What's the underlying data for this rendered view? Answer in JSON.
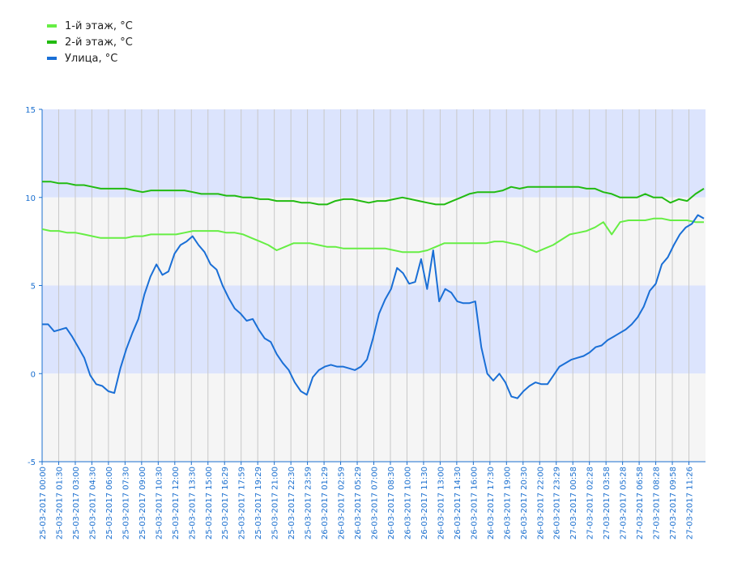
{
  "legend": [
    {
      "label": "1-й этаж, °С",
      "color": "#66ee44"
    },
    {
      "label": "2-й этаж, °С",
      "color": "#22bb11"
    },
    {
      "label": "Улица, °С",
      "color": "#1a6fd6"
    }
  ],
  "chart_data": {
    "type": "line",
    "ylim": [
      -5,
      15
    ],
    "yticks": [
      "15",
      "10",
      "5",
      "0",
      "-5"
    ],
    "x_tick_labels": [
      "25-03-2017 00:00",
      "25-03-2017 01:30",
      "25-03-2017 03:00",
      "25-03-2017 04:30",
      "25-03-2017 06:00",
      "25-03-2017 07:30",
      "25-03-2017 09:00",
      "25-03-2017 10:30",
      "25-03-2017 12:00",
      "25-03-2017 13:30",
      "25-03-2017 15:00",
      "25-03-2017 16:29",
      "25-03-2017 17:59",
      "25-03-2017 19:29",
      "25-03-2017 21:00",
      "25-03-2017 22:30",
      "25-03-2017 23:59",
      "26-03-2017 01:29",
      "26-03-2017 02:59",
      "26-03-2017 05:29",
      "26-03-2017 07:00",
      "26-03-2017 08:30",
      "26-03-2017 10:00",
      "26-03-2017 11:30",
      "26-03-2017 13:00",
      "26-03-2017 14:30",
      "26-03-2017 16:00",
      "26-03-2017 17:30",
      "26-03-2017 19:00",
      "26-03-2017 20:30",
      "26-03-2017 22:00",
      "26-03-2017 23:29",
      "27-03-2017 00:58",
      "27-03-2017 02:28",
      "27-03-2017 03:58",
      "27-03-2017 05:28",
      "27-03-2017 06:58",
      "27-03-2017 08:28",
      "27-03-2017 09:58",
      "27-03-2017 11:26"
    ],
    "bands": [
      {
        "from": 10,
        "to": 15,
        "color": "#dce4fd"
      },
      {
        "from": 5,
        "to": 10,
        "color": "#f5f5f5"
      },
      {
        "from": 0,
        "to": 5,
        "color": "#dce4fd"
      },
      {
        "from": -5,
        "to": 0,
        "color": "#f5f5f5"
      }
    ],
    "series": [
      {
        "name": "2-й этаж, °С",
        "color": "#22bb11",
        "values": [
          10.9,
          10.9,
          10.8,
          10.8,
          10.7,
          10.7,
          10.6,
          10.5,
          10.5,
          10.5,
          10.5,
          10.4,
          10.3,
          10.4,
          10.4,
          10.4,
          10.4,
          10.4,
          10.3,
          10.2,
          10.2,
          10.2,
          10.1,
          10.1,
          10.0,
          10.0,
          9.9,
          9.9,
          9.8,
          9.8,
          9.8,
          9.7,
          9.7,
          9.6,
          9.6,
          9.8,
          9.9,
          9.9,
          9.8,
          9.7,
          9.8,
          9.8,
          9.9,
          10.0,
          9.9,
          9.8,
          9.7,
          9.6,
          9.6,
          9.8,
          10.0,
          10.2,
          10.3,
          10.3,
          10.3,
          10.4,
          10.6,
          10.5,
          10.6,
          10.6,
          10.6,
          10.6,
          10.6,
          10.6,
          10.6,
          10.5,
          10.5,
          10.3,
          10.2,
          10.0,
          10.0,
          10.0,
          10.2,
          10.0,
          10.0,
          9.7,
          9.9,
          9.8,
          10.2,
          10.5
        ]
      },
      {
        "name": "1-й этаж, °С",
        "color": "#66ee44",
        "values": [
          8.2,
          8.1,
          8.1,
          8.0,
          8.0,
          7.9,
          7.8,
          7.7,
          7.7,
          7.7,
          7.7,
          7.8,
          7.8,
          7.9,
          7.9,
          7.9,
          7.9,
          8.0,
          8.1,
          8.1,
          8.1,
          8.1,
          8.0,
          8.0,
          7.9,
          7.7,
          7.5,
          7.3,
          7.0,
          7.2,
          7.4,
          7.4,
          7.4,
          7.3,
          7.2,
          7.2,
          7.1,
          7.1,
          7.1,
          7.1,
          7.1,
          7.1,
          7.0,
          6.9,
          6.9,
          6.9,
          7.0,
          7.2,
          7.4,
          7.4,
          7.4,
          7.4,
          7.4,
          7.4,
          7.5,
          7.5,
          7.4,
          7.3,
          7.1,
          6.9,
          7.1,
          7.3,
          7.6,
          7.9,
          8.0,
          8.1,
          8.3,
          8.6,
          7.9,
          8.6,
          8.7,
          8.7,
          8.7,
          8.8,
          8.8,
          8.7,
          8.7,
          8.7,
          8.6,
          8.6
        ]
      },
      {
        "name": "Улица, °С",
        "color": "#1a6fd6",
        "values": [
          2.8,
          2.8,
          2.4,
          2.5,
          2.6,
          2.1,
          1.5,
          0.9,
          -0.1,
          -0.6,
          -0.7,
          -1.0,
          -1.1,
          0.3,
          1.4,
          2.3,
          3.1,
          4.5,
          5.5,
          6.2,
          5.6,
          5.8,
          6.8,
          7.3,
          7.5,
          7.8,
          7.3,
          6.9,
          6.2,
          5.9,
          5.0,
          4.3,
          3.7,
          3.4,
          3.0,
          3.1,
          2.5,
          2.0,
          1.8,
          1.1,
          0.6,
          0.2,
          -0.5,
          -1.0,
          -1.2,
          -0.2,
          0.2,
          0.4,
          0.5,
          0.4,
          0.4,
          0.3,
          0.2,
          0.4,
          0.8,
          2.0,
          3.4,
          4.2,
          4.8,
          6.0,
          5.7,
          5.1,
          5.2,
          6.5,
          4.8,
          7.0,
          4.1,
          4.8,
          4.6,
          4.1,
          4.0,
          4.0,
          4.1,
          1.5,
          0.0,
          -0.4,
          0.0,
          -0.5,
          -1.3,
          -1.4,
          -1.0,
          -0.7,
          -0.5,
          -0.6,
          -0.6,
          -0.1,
          0.4,
          0.6,
          0.8,
          0.9,
          1.0,
          1.2,
          1.5,
          1.6,
          1.9,
          2.1,
          2.3,
          2.5,
          2.8,
          3.2,
          3.8,
          4.7,
          5.1,
          6.2,
          6.6,
          7.3,
          7.9,
          8.3,
          8.5,
          9.0,
          8.8
        ]
      }
    ]
  }
}
